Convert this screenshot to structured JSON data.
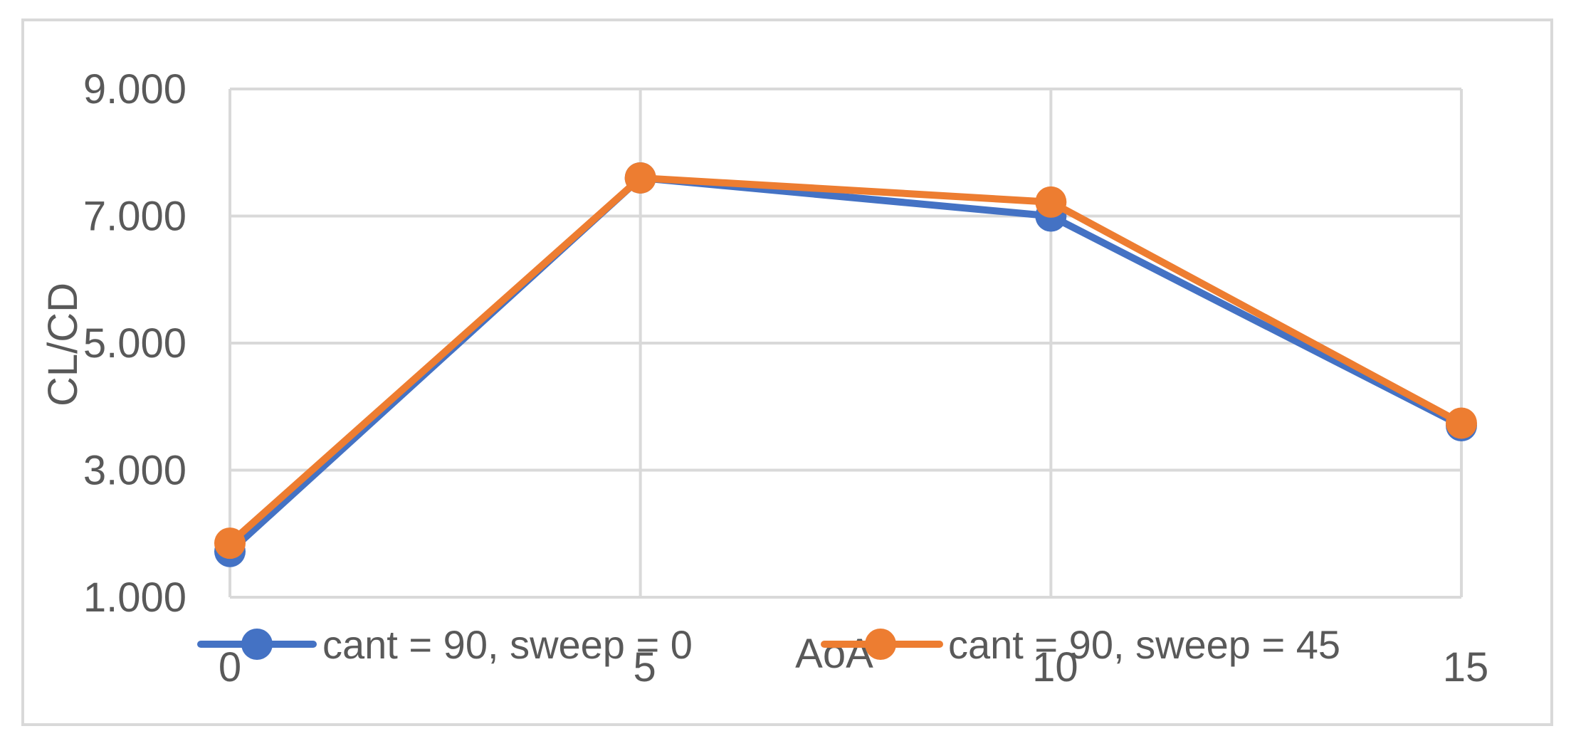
{
  "chart_data": {
    "type": "line",
    "title": "",
    "xlabel": "AoA",
    "ylabel": "CL/CD",
    "x": [
      0,
      5,
      10,
      15
    ],
    "x_tick_labels": [
      "0",
      "5",
      "10",
      "15"
    ],
    "ylim": [
      1.0,
      9.0
    ],
    "y_ticks": [
      1.0,
      3.0,
      5.0,
      7.0,
      9.0
    ],
    "y_tick_labels": [
      "1.000",
      "3.000",
      "5.000",
      "7.000",
      "9.000"
    ],
    "grid": true,
    "legend_position": "bottom",
    "series": [
      {
        "name": "cant = 90, sweep = 0",
        "color": "#4472c4",
        "values": [
          1.72,
          7.6,
          7.0,
          3.7
        ]
      },
      {
        "name": "cant = 90, sweep = 45",
        "color": "#ed7d31",
        "values": [
          1.85,
          7.6,
          7.22,
          3.74
        ]
      }
    ]
  }
}
